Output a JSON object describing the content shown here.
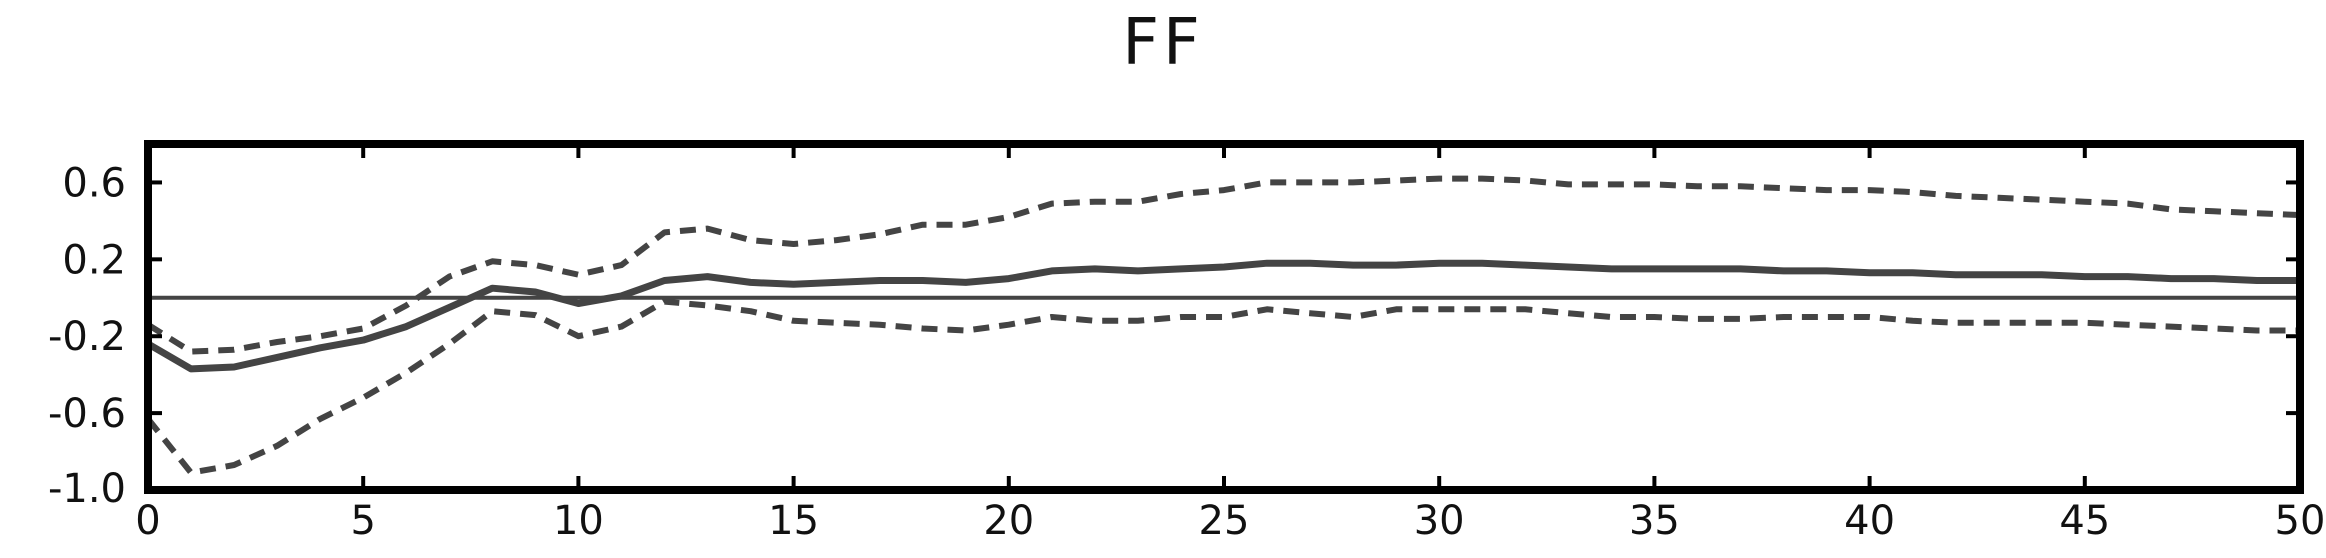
{
  "chart_data": {
    "type": "line",
    "title": "FF",
    "xlabel": "",
    "ylabel": "",
    "xlim": [
      0,
      50
    ],
    "ylim": [
      -1.0,
      0.8
    ],
    "x_ticks": [
      0,
      5,
      10,
      15,
      20,
      25,
      30,
      35,
      40,
      45,
      50
    ],
    "x_tick_labels": [
      "0",
      "5",
      "10",
      "15",
      "20",
      "25",
      "30",
      "35",
      "40",
      "45",
      "50"
    ],
    "y_ticks": [
      0.6,
      0.2,
      -0.2,
      -0.6,
      -1.0
    ],
    "y_tick_labels": [
      "0.6",
      "0.2",
      "-0.2",
      "-0.6",
      "-1.0"
    ],
    "reference_line": 0.0,
    "grid": false,
    "x": [
      0,
      1,
      2,
      3,
      4,
      5,
      6,
      7,
      8,
      9,
      10,
      11,
      12,
      13,
      14,
      15,
      16,
      17,
      18,
      19,
      20,
      21,
      22,
      23,
      24,
      25,
      26,
      27,
      28,
      29,
      30,
      31,
      32,
      33,
      34,
      35,
      36,
      37,
      38,
      39,
      40,
      41,
      42,
      43,
      44,
      45,
      46,
      47,
      48,
      49,
      50
    ],
    "series": [
      {
        "style": "solid",
        "values": [
          -0.24,
          -0.37,
          -0.36,
          -0.31,
          -0.26,
          -0.22,
          -0.15,
          -0.05,
          0.05,
          0.03,
          -0.03,
          0.01,
          0.09,
          0.11,
          0.08,
          0.07,
          0.08,
          0.09,
          0.09,
          0.08,
          0.1,
          0.14,
          0.15,
          0.14,
          0.15,
          0.16,
          0.18,
          0.18,
          0.17,
          0.17,
          0.18,
          0.18,
          0.17,
          0.16,
          0.15,
          0.15,
          0.15,
          0.15,
          0.14,
          0.14,
          0.13,
          0.13,
          0.12,
          0.12,
          0.12,
          0.11,
          0.11,
          0.1,
          0.1,
          0.09,
          0.09
        ]
      },
      {
        "style": "dashed",
        "values": [
          -0.14,
          -0.28,
          -0.27,
          -0.23,
          -0.2,
          -0.16,
          -0.04,
          0.11,
          0.19,
          0.17,
          0.12,
          0.17,
          0.34,
          0.36,
          0.3,
          0.28,
          0.3,
          0.33,
          0.38,
          0.38,
          0.42,
          0.49,
          0.5,
          0.5,
          0.54,
          0.56,
          0.6,
          0.6,
          0.6,
          0.61,
          0.62,
          0.62,
          0.61,
          0.59,
          0.59,
          0.59,
          0.58,
          0.58,
          0.57,
          0.56,
          0.56,
          0.55,
          0.53,
          0.52,
          0.51,
          0.5,
          0.49,
          0.46,
          0.45,
          0.44,
          0.43
        ]
      },
      {
        "style": "dashed",
        "values": [
          -0.63,
          -0.91,
          -0.87,
          -0.77,
          -0.63,
          -0.52,
          -0.39,
          -0.24,
          -0.07,
          -0.09,
          -0.2,
          -0.15,
          -0.02,
          -0.04,
          -0.07,
          -0.12,
          -0.13,
          -0.14,
          -0.16,
          -0.17,
          -0.14,
          -0.1,
          -0.12,
          -0.12,
          -0.1,
          -0.1,
          -0.06,
          -0.08,
          -0.1,
          -0.06,
          -0.06,
          -0.06,
          -0.06,
          -0.08,
          -0.1,
          -0.1,
          -0.11,
          -0.11,
          -0.1,
          -0.1,
          -0.1,
          -0.12,
          -0.13,
          -0.13,
          -0.13,
          -0.13,
          -0.14,
          -0.15,
          -0.16,
          -0.17,
          -0.17
        ]
      }
    ],
    "colors": {
      "series": "#444444",
      "zero_line": "#444444",
      "frame": "#000000",
      "text": "#111111"
    }
  }
}
